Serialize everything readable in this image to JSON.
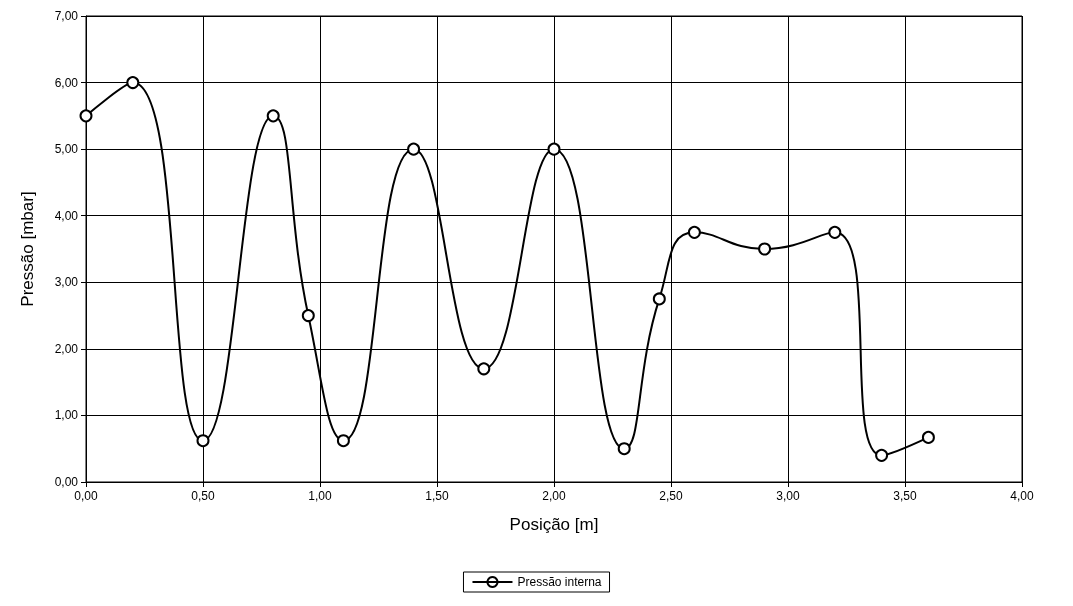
{
  "chart_data": {
    "type": "line",
    "xlabel": "Posição [m]",
    "ylabel": "Pressão [mbar]",
    "x": [
      0,
      0.2,
      0.5,
      0.8,
      0.95,
      1.1,
      1.4,
      1.7,
      2.0,
      2.3,
      2.45,
      2.6,
      2.9,
      3.2,
      3.4,
      3.6
    ],
    "series": [
      {
        "name": "Pressão interna",
        "color": "#000000",
        "values": [
          5.5,
          6.0,
          0.62,
          5.5,
          2.5,
          0.62,
          5.0,
          1.7,
          5.0,
          0.5,
          2.75,
          3.75,
          3.5,
          3.75,
          0.4,
          0.67
        ]
      }
    ],
    "xlim": [
      0,
      4
    ],
    "xticks": [
      {
        "value": 0,
        "label": "0,00"
      },
      {
        "value": 0.5,
        "label": "0,50"
      },
      {
        "value": 1,
        "label": "1,00"
      },
      {
        "value": 1.5,
        "label": "1,50"
      },
      {
        "value": 2,
        "label": "2,00"
      },
      {
        "value": 2.5,
        "label": "2,50"
      },
      {
        "value": 3,
        "label": "3,00"
      },
      {
        "value": 3.5,
        "label": "3,50"
      },
      {
        "value": 4,
        "label": "4,00"
      }
    ],
    "ylim": [
      0,
      7
    ],
    "yticks": [
      {
        "value": 0,
        "label": "0,00"
      },
      {
        "value": 1,
        "label": "1,00"
      },
      {
        "value": 2,
        "label": "2,00"
      },
      {
        "value": 3,
        "label": "3,00"
      },
      {
        "value": 4,
        "label": "4,00"
      },
      {
        "value": 5,
        "label": "5,00"
      },
      {
        "value": 6,
        "label": "6,00"
      },
      {
        "value": 7,
        "label": "7,00"
      }
    ],
    "grid": true,
    "legend": "bottom",
    "marker": "circle",
    "line_style": "solid"
  }
}
